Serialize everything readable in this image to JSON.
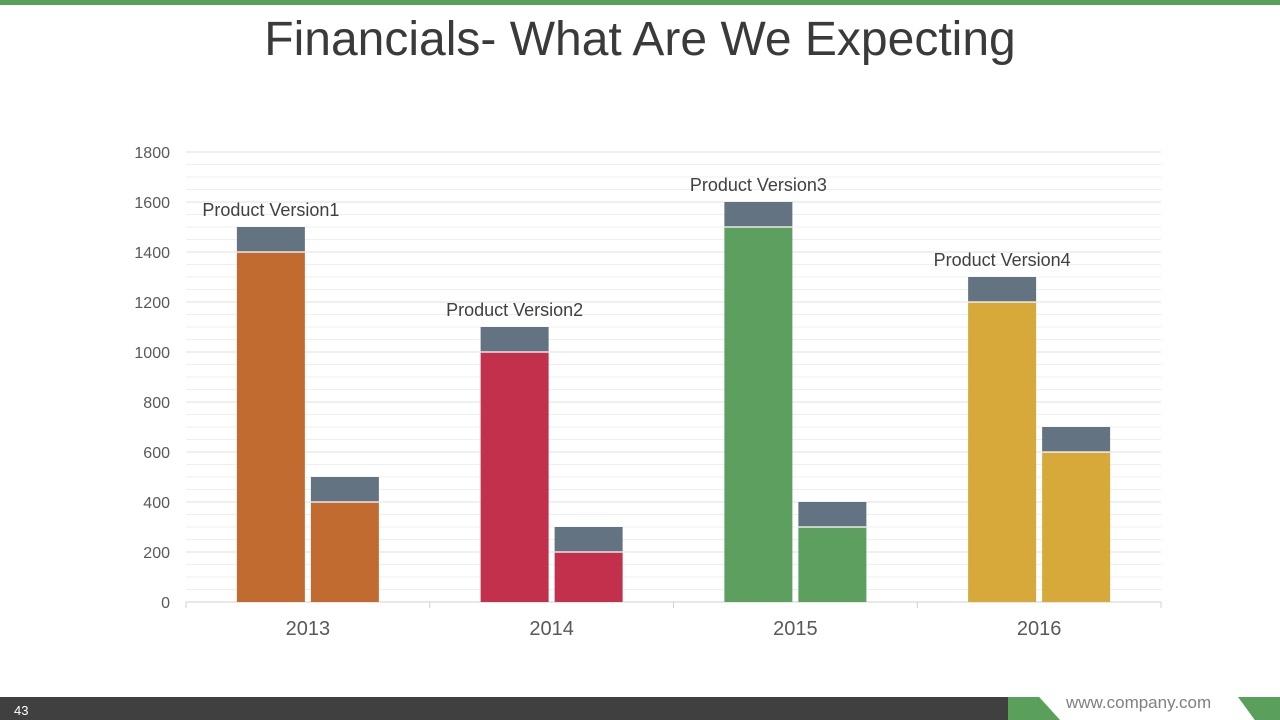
{
  "slide": {
    "title": "Financials- What Are We Expecting",
    "number": "43",
    "website": "www.company.com"
  },
  "colors": {
    "accent_green": "#5aa05a",
    "dark_bar": "#404040",
    "cap": "#637381",
    "series_colors": [
      "#c26b30",
      "#c3304c",
      "#5c9f5e",
      "#d6a93a"
    ]
  },
  "chart_data": {
    "type": "bar",
    "stacked": true,
    "categories": [
      "2013",
      "2014",
      "2015",
      "2016"
    ],
    "ylim": [
      0,
      1800
    ],
    "yticks": [
      0,
      200,
      400,
      600,
      800,
      1000,
      1200,
      1400,
      1600,
      1800
    ],
    "grid": true,
    "groups": [
      {
        "category": "2013",
        "label": "Product Version1",
        "bars": [
          {
            "base": 1400,
            "top": 100
          },
          {
            "base": 400,
            "top": 100
          }
        ]
      },
      {
        "category": "2014",
        "label": "Product Version2",
        "bars": [
          {
            "base": 1000,
            "top": 100
          },
          {
            "base": 200,
            "top": 100
          }
        ]
      },
      {
        "category": "2015",
        "label": "Product Version3",
        "bars": [
          {
            "base": 1500,
            "top": 100
          },
          {
            "base": 300,
            "top": 100
          }
        ]
      },
      {
        "category": "2016",
        "label": "Product Version4",
        "bars": [
          {
            "base": 1200,
            "top": 100
          },
          {
            "base": 600,
            "top": 100
          }
        ]
      }
    ]
  }
}
